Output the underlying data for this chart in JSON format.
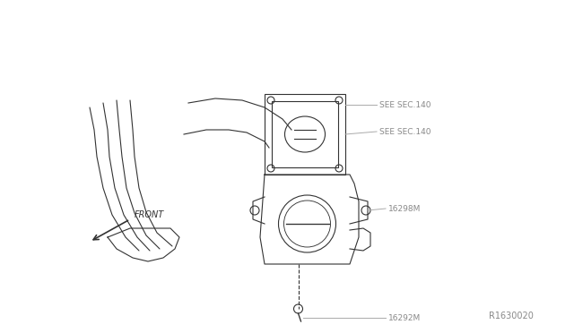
{
  "background_color": "#ffffff",
  "diagram_id": "R1630020",
  "labels": {
    "see_sec_140_top": "SEE SEC.140",
    "see_sec_140_bot": "SEE SEC.140",
    "part_16298M": "16298M",
    "part_16292M": "16292M",
    "front": "FRONT",
    "diagram_ref": "R1630020"
  },
  "text_color": "#888888",
  "line_color": "#333333",
  "label_line_color": "#aaaaaa"
}
